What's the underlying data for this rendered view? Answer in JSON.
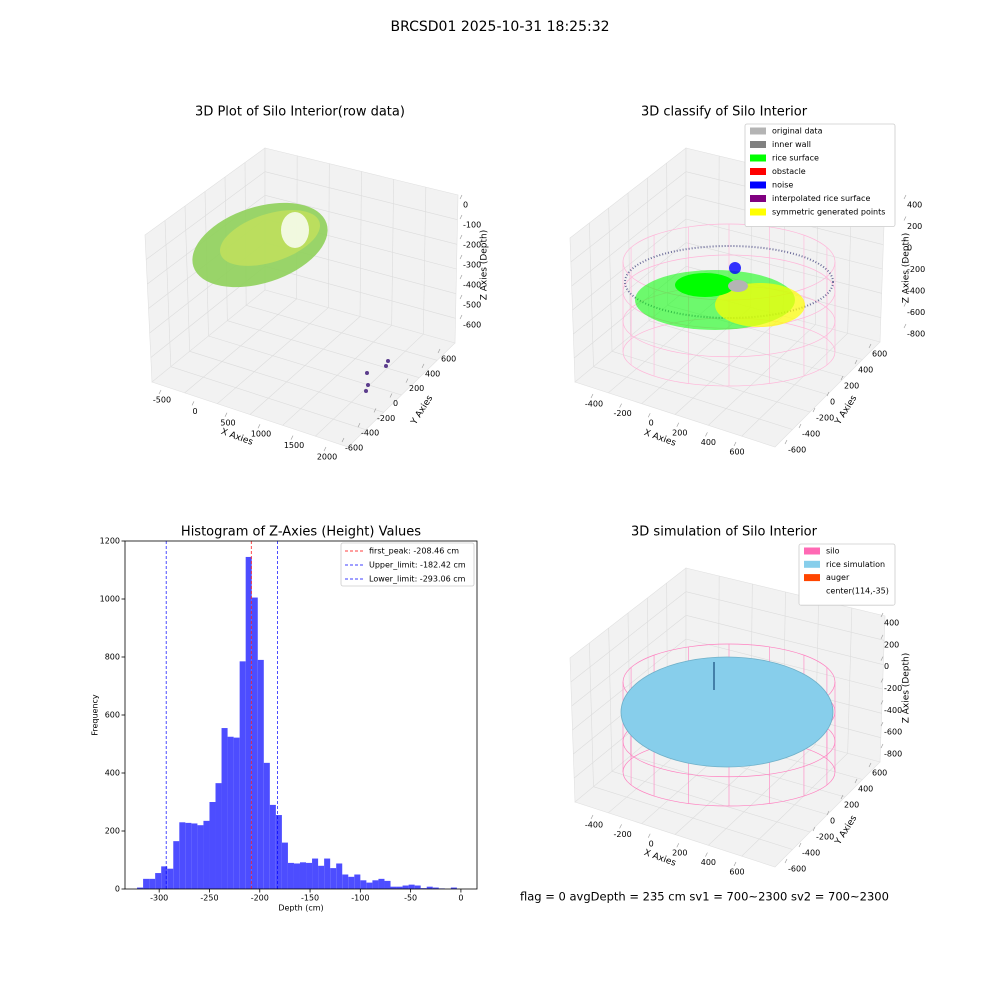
{
  "title": "BRCSD01 2025-10-31 18:25:32",
  "footer": "flag = 0     avgDepth = 235 cm  sv1 = 700~2300  sv2 = 700~2300",
  "chart_data": [
    {
      "type": "scatter3d",
      "title": "3D Plot of Silo Interior(row data)",
      "xlabel": "X Axies",
      "ylabel": "Y Axies",
      "zlabel": "Z Axies (Depth)",
      "xticks": [
        -500,
        0,
        500,
        1000,
        1500,
        2000
      ],
      "yticks": [
        -600,
        -400,
        -200,
        0,
        200,
        400,
        600
      ],
      "zticks": [
        0,
        -100,
        -200,
        -300,
        -400,
        -500,
        -600
      ]
    },
    {
      "type": "scatter3d",
      "title": "3D classify of Silo Interior",
      "xlabel": "X Axies",
      "ylabel": "Y Axies",
      "zlabel": "Z Axies (Depth)",
      "xticks": [
        -400,
        -200,
        0,
        200,
        400,
        600
      ],
      "yticks": [
        -600,
        -400,
        -200,
        0,
        200,
        400,
        600
      ],
      "zticks": [
        400,
        200,
        0,
        -200,
        -400,
        -600,
        -800
      ],
      "legend": [
        {
          "label": "original data",
          "color": "#b4b4b4"
        },
        {
          "label": "inner wall",
          "color": "#808080"
        },
        {
          "label": "rice surface",
          "color": "#00ff00"
        },
        {
          "label": "obstacle",
          "color": "#ff0000"
        },
        {
          "label": "noise",
          "color": "#0000ff"
        },
        {
          "label": "interpolated rice surface",
          "color": "#800080"
        },
        {
          "label": "symmetric generated points",
          "color": "#ffff00"
        }
      ]
    },
    {
      "type": "histogram",
      "title": "Histogram of Z-Axies (Height) Values",
      "xlabel": "Depth (cm)",
      "ylabel": "Frequency",
      "color": "#4d4dff",
      "bins": [
        -322,
        -316,
        -310,
        -304,
        -298,
        -292,
        -286,
        -280,
        -274,
        -268,
        -262,
        -256,
        -250,
        -244,
        -238,
        -232,
        -226,
        -220,
        -214,
        -208,
        -202,
        -196,
        -190,
        -184,
        -178,
        -172,
        -166,
        -160,
        -154,
        -148,
        -142,
        -136,
        -130,
        -124,
        -118,
        -112,
        -106,
        -100,
        -94,
        -88,
        -82,
        -76,
        -70,
        -64,
        -58,
        -52,
        -46,
        -40,
        -34,
        -28,
        -22,
        -16,
        -10,
        -4,
        2
      ],
      "counts": [
        5,
        35,
        35,
        55,
        78,
        70,
        165,
        230,
        228,
        226,
        220,
        235,
        300,
        365,
        555,
        525,
        522,
        785,
        1145,
        1005,
        790,
        435,
        290,
        255,
        160,
        90,
        88,
        92,
        90,
        105,
        80,
        105,
        72,
        88,
        50,
        42,
        50,
        30,
        22,
        30,
        35,
        28,
        8,
        8,
        12,
        15,
        12,
        3,
        8,
        5,
        2,
        0,
        5,
        0
      ],
      "xlim": [
        -334,
        16
      ],
      "ylim": [
        0,
        1200
      ],
      "xticks": [
        -300,
        -250,
        -200,
        -150,
        -100,
        -50,
        0
      ],
      "yticks": [
        0,
        200,
        400,
        600,
        800,
        1000,
        1200
      ],
      "lines": [
        {
          "label": "first_peak: -208.46 cm",
          "value": -208.46,
          "color": "#ff0000"
        },
        {
          "label": "Upper_limit: -182.42 cm",
          "value": -182.42,
          "color": "#0000ff"
        },
        {
          "label": "Lower_limit: -293.06 cm",
          "value": -293.06,
          "color": "#0000ff"
        }
      ]
    },
    {
      "type": "surface3d",
      "title": "3D simulation of Silo Interior",
      "xlabel": "X Axies",
      "ylabel": "Y Axies",
      "zlabel": "Z Axies (Depth)",
      "xticks": [
        -400,
        -200,
        0,
        200,
        400,
        600
      ],
      "yticks": [
        -600,
        -400,
        -200,
        0,
        200,
        400,
        600
      ],
      "zticks": [
        400,
        200,
        0,
        -200,
        -400,
        -600,
        -800
      ],
      "legend": [
        {
          "label": "silo",
          "color": "#ff69b4"
        },
        {
          "label": "rice simulation",
          "color": "#87ceeb"
        },
        {
          "label": "auger",
          "color": "#ff4500"
        },
        {
          "label": "center(114,-35)"
        }
      ]
    }
  ]
}
